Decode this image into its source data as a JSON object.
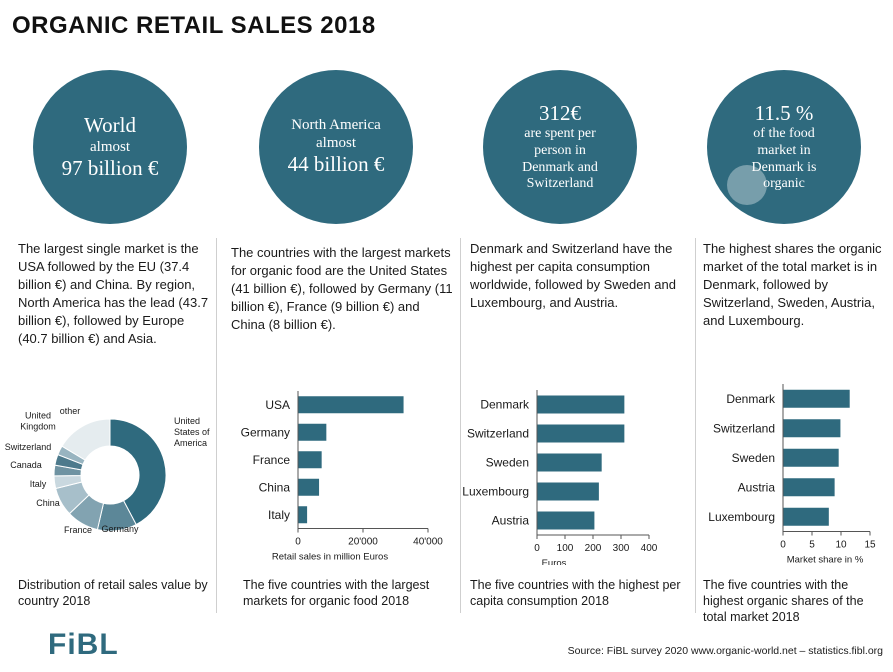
{
  "title": "ORGANIC RETAIL SALES 2018",
  "colors": {
    "teal": "#2f6a7e",
    "bar": "#2f6a7e"
  },
  "circles": [
    {
      "line1": "World",
      "line2": "almost",
      "line3": "97 billion €"
    },
    {
      "line1": "North America",
      "line2": "almost",
      "line3": "44 billion €"
    },
    {
      "line1": "312€",
      "line2": "are spent per person in Denmark and Switzerland"
    },
    {
      "line1": "11.5 %",
      "line2": "of the food market in Denmark is organic"
    }
  ],
  "descriptions": [
    "The largest single market is the USA followed by the EU (37.4 billion €) and China. By region, North America has the lead (43.7 billion €), followed by Europe (40.7 billion €) and Asia.",
    "The countries with the largest markets for organic food are the United States (41 billion €), followed by Germany (11 billion €), France (9 billion €) and China (8 billion €).",
    "Denmark and Switzerland have the highest per capita consumption worldwide, followed by Sweden and Luxembourg, and Austria.",
    "The highest shares the organic market of the total market is in Denmark, followed by Switzerland, Sweden, Austria, and Luxembourg."
  ],
  "captions": [
    "Distribution of retail sales value by country 2018",
    "The five countries with the largest markets for organic food 2018",
    "The five countries with the highest per capita consumption 2018",
    "The five countries with the highest organic shares of the total market 2018"
  ],
  "logo": "FiBL",
  "source": "Source: FiBL survey 2020  www.organic-world.net – statistics.fibl.org",
  "chart_data": [
    {
      "type": "pie",
      "categories": [
        "United States of America",
        "Germany",
        "France",
        "China",
        "Italy",
        "Canada",
        "Switzerland",
        "United Kingdom",
        "other"
      ],
      "labels": [
        "United\nStates of\nAmerica",
        "Germany",
        "France",
        "China",
        "Italy",
        "Canada",
        "Switzerland",
        "United\nKingdom",
        "other"
      ],
      "values": [
        41,
        11,
        9,
        8,
        3.5,
        3,
        3,
        2.6,
        15.9
      ],
      "colors": [
        "#2f6a7e",
        "#5c8798",
        "#82a3b1",
        "#a7bfca",
        "#c9d8df",
        "#6f93a2",
        "#4d7a8c",
        "#98b4c0",
        "#e5ecef"
      ]
    },
    {
      "type": "bar",
      "orientation": "horizontal",
      "categories": [
        "USA",
        "Germany",
        "France",
        "China",
        "Italy"
      ],
      "values": [
        40600,
        10900,
        9100,
        8100,
        3500
      ],
      "xlabel": "Retail sales in million Euros",
      "xlim": [
        0,
        50000
      ],
      "ticks": [
        "0",
        "20'000",
        "40'000"
      ]
    },
    {
      "type": "bar",
      "orientation": "horizontal",
      "categories": [
        "Denmark",
        "Switzerland",
        "Sweden",
        "Luxembourg",
        "Austria"
      ],
      "values": [
        312,
        312,
        231,
        221,
        205
      ],
      "xlabel": "Euros",
      "xlim": [
        0,
        400
      ],
      "ticks": [
        "0",
        "100",
        "200",
        "300",
        "400"
      ]
    },
    {
      "type": "bar",
      "orientation": "horizontal",
      "categories": [
        "Denmark",
        "Switzerland",
        "Sweden",
        "Austria",
        "Luxembourg"
      ],
      "values": [
        11.5,
        9.9,
        9.6,
        8.9,
        7.9
      ],
      "xlabel": "Market share in %",
      "xlim": [
        0,
        15
      ],
      "ticks": [
        "0",
        "5",
        "10",
        "15"
      ]
    }
  ]
}
